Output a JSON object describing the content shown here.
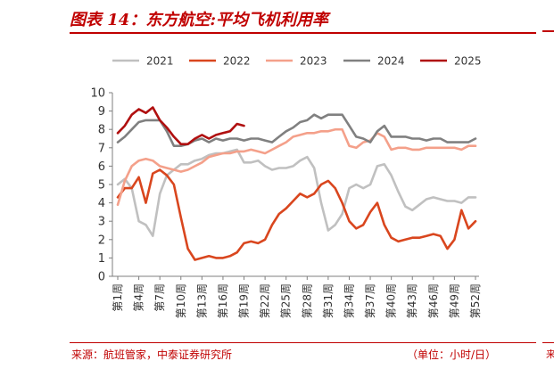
{
  "header": {
    "title": "图表 14：东方航空:平均飞机利用率"
  },
  "footer": {
    "source": "来源：航班管家，中泰证券研究所",
    "unit": "（单位：小时/日）",
    "right_fragment": "来"
  },
  "chart_data": {
    "type": "line",
    "title": "",
    "xlabel": "",
    "ylabel": "",
    "ylim": [
      0,
      10
    ],
    "yticks": [
      "0",
      "1",
      "2",
      "3",
      "4",
      "5",
      "6",
      "7",
      "8",
      "9",
      "10"
    ],
    "grid": false,
    "legend_position": "top",
    "x_tick_labels": [
      "第1周",
      "第4周",
      "第7周",
      "第10周",
      "第13周",
      "第16周",
      "第19周",
      "第22周",
      "第25周",
      "第28周",
      "第31周",
      "第34周",
      "第37周",
      "第40周",
      "第43周",
      "第46周",
      "第49周",
      "第52周"
    ],
    "series": [
      {
        "name": "2021",
        "color": "#c0c0c0",
        "values": [
          5.0,
          5.3,
          4.8,
          3.0,
          2.8,
          2.2,
          4.5,
          5.5,
          5.8,
          6.1,
          6.1,
          6.3,
          6.4,
          6.6,
          6.7,
          6.7,
          6.8,
          6.9,
          6.2,
          6.2,
          6.3,
          6.0,
          5.8,
          5.9,
          5.9,
          6.0,
          6.3,
          6.5,
          5.9,
          4.0,
          2.5,
          2.8,
          3.4,
          4.8,
          5.0,
          4.8,
          5.0,
          6.0,
          6.1,
          5.5,
          4.6,
          3.8,
          3.6,
          3.9,
          4.2,
          4.3,
          4.2,
          4.1,
          4.1,
          4.0,
          4.3,
          4.3
        ]
      },
      {
        "name": "2022",
        "color": "#d9461e",
        "values": [
          4.3,
          4.8,
          4.8,
          5.4,
          4.0,
          5.6,
          5.8,
          5.5,
          5.0,
          3.2,
          1.5,
          0.9,
          1.0,
          1.1,
          1.0,
          1.0,
          1.1,
          1.3,
          1.8,
          1.9,
          1.8,
          2.0,
          2.8,
          3.4,
          3.7,
          4.1,
          4.5,
          4.3,
          4.5,
          5.0,
          5.2,
          4.8,
          4.0,
          3.0,
          2.6,
          2.8,
          3.5,
          4.0,
          2.8,
          2.1,
          1.9,
          2.0,
          2.1,
          2.1,
          2.2,
          2.3,
          2.2,
          1.5,
          2.0,
          3.6,
          2.6,
          3.0
        ]
      },
      {
        "name": "2023",
        "color": "#f4a08a",
        "values": [
          3.9,
          5.2,
          6.0,
          6.3,
          6.4,
          6.3,
          6.0,
          5.9,
          5.8,
          5.7,
          5.8,
          6.0,
          6.2,
          6.5,
          6.6,
          6.7,
          6.7,
          6.8,
          6.8,
          6.9,
          6.8,
          6.7,
          6.9,
          7.1,
          7.3,
          7.6,
          7.7,
          7.8,
          7.8,
          7.9,
          7.9,
          8.0,
          8.0,
          7.1,
          7.0,
          7.3,
          7.4,
          7.8,
          7.6,
          6.9,
          7.0,
          7.0,
          6.9,
          6.9,
          7.0,
          7.0,
          7.0,
          7.0,
          7.0,
          6.9,
          7.1,
          7.1
        ]
      },
      {
        "name": "2024",
        "color": "#808080",
        "values": [
          7.3,
          7.6,
          8.0,
          8.4,
          8.5,
          8.5,
          8.5,
          7.9,
          7.1,
          7.1,
          7.2,
          7.4,
          7.5,
          7.3,
          7.5,
          7.4,
          7.5,
          7.5,
          7.4,
          7.5,
          7.5,
          7.4,
          7.3,
          7.6,
          7.9,
          8.1,
          8.4,
          8.5,
          8.8,
          8.6,
          8.8,
          8.8,
          8.8,
          8.2,
          7.6,
          7.5,
          7.3,
          7.9,
          8.2,
          7.6,
          7.6,
          7.6,
          7.5,
          7.5,
          7.4,
          7.5,
          7.5,
          7.3,
          7.3,
          7.3,
          7.3,
          7.5
        ]
      },
      {
        "name": "2025",
        "color": "#b01010",
        "values": [
          7.8,
          8.2,
          8.8,
          9.1,
          8.9,
          9.2,
          8.5,
          8.1,
          7.6,
          7.2,
          7.2,
          7.5,
          7.7,
          7.5,
          7.7,
          7.8,
          7.9,
          8.3,
          8.2
        ]
      }
    ]
  }
}
